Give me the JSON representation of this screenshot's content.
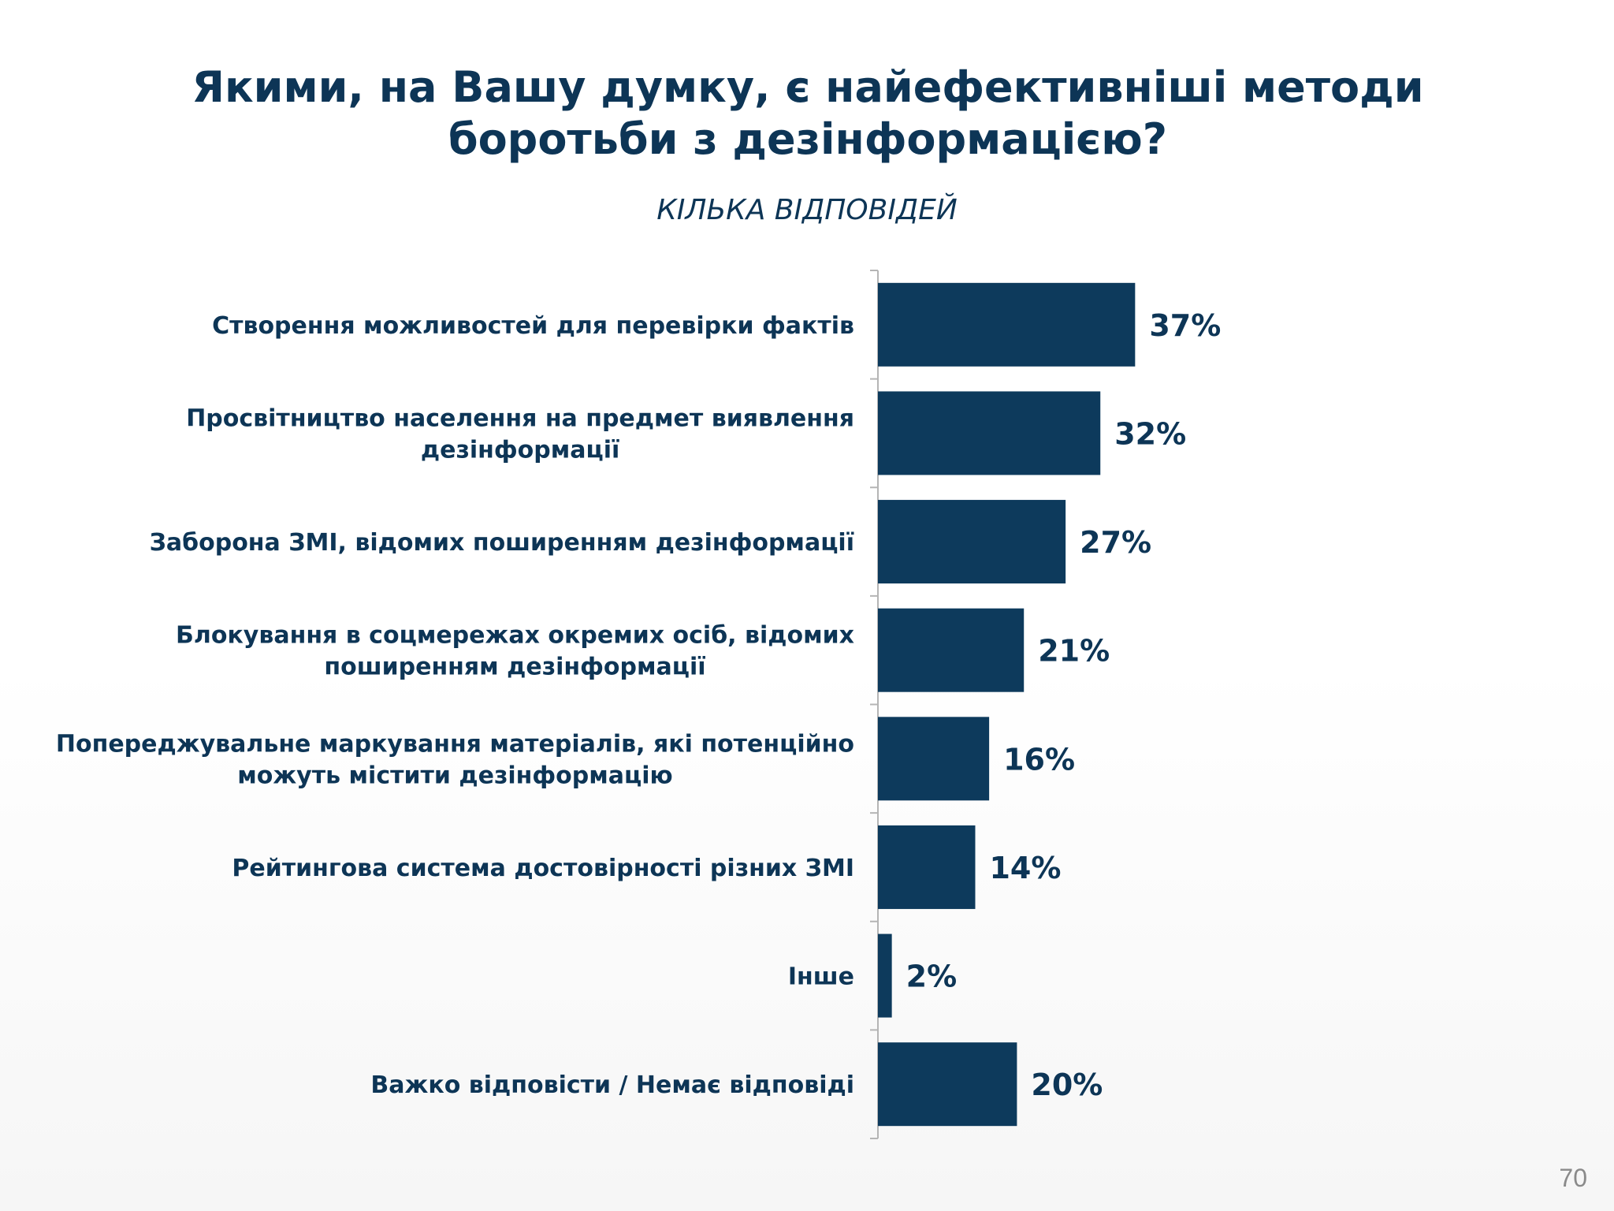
{
  "slide": {
    "page_number": "70"
  },
  "chart_data": {
    "type": "bar",
    "orientation": "horizontal",
    "title": "Якими, на Вашу думку, є найефективніші методи боротьби з дезінформацією?",
    "subtitle": "КІЛЬКА ВІДПОВІДЕЙ",
    "categories": [
      [
        "Створення можливостей для перевірки фактів"
      ],
      [
        "Просвітництво населення на предмет виявлення",
        "дезінформації"
      ],
      [
        "Заборона ЗМІ, відомих поширенням дезінформації"
      ],
      [
        "Блокування в соцмережах окремих осіб, відомих",
        "поширенням дезінформації"
      ],
      [
        "Попереджувальне маркування матеріалів, які потенційно",
        "можуть містити дезінформацію"
      ],
      [
        "Рейтингова система достовірності різних ЗМІ"
      ],
      [
        "Інше"
      ],
      [
        "Важко відповісти / Немає відповіді"
      ]
    ],
    "values": [
      37,
      32,
      27,
      21,
      16,
      14,
      2,
      20
    ],
    "value_labels": [
      "37%",
      "32%",
      "27%",
      "21%",
      "16%",
      "14%",
      "2%",
      "20%"
    ],
    "unit": "%",
    "xlim": [
      0,
      100
    ],
    "grid": false,
    "legend": "none",
    "bar_color": "#0d3a5c",
    "text_color": "#0d3556",
    "axis_color": "#b5b5b5"
  }
}
